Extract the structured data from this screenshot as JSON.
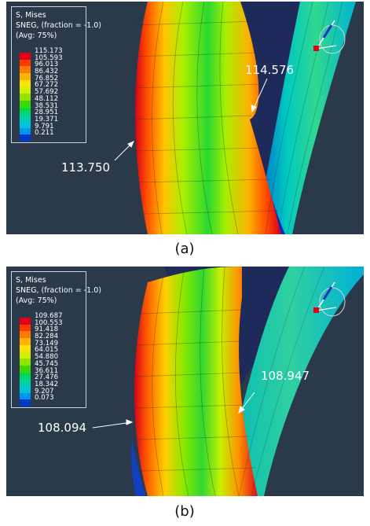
{
  "colors": {
    "background": "#2b3a4b",
    "legend_bands": [
      "#e4001a",
      "#ff3a00",
      "#ff7a00",
      "#ffb200",
      "#ffe200",
      "#d4f000",
      "#8ee600",
      "#3ed800",
      "#00d85a",
      "#00d2a4",
      "#00c4d8",
      "#0094f0",
      "#003ac8"
    ]
  },
  "panels": [
    {
      "caption": "(a)",
      "legend": {
        "title_lines": [
          "S, Mises",
          "SNEG, (fraction = -1.0)",
          "(Avg: 75%)"
        ],
        "values": [
          "115.173",
          "105.593",
          "96.013",
          "86.432",
          "76.852",
          "67.272",
          "57.692",
          "48.112",
          "38.531",
          "28.951",
          "19.371",
          "9.791",
          "0.211"
        ]
      },
      "callouts": {
        "left": "113.750",
        "right": "114.576"
      }
    },
    {
      "caption": "(b)",
      "legend": {
        "title_lines": [
          "S, Mises",
          "SNEG, (fraction = -1.0)",
          "(Avg: 75%)"
        ],
        "values": [
          "109.687",
          "100.553",
          "91.418",
          "82.284",
          "73.149",
          "64.015",
          "54.880",
          "45.745",
          "36.611",
          "27.476",
          "18.342",
          "9.207",
          "0.073"
        ]
      },
      "callouts": {
        "left": "108.094",
        "right": "108.947"
      }
    }
  ]
}
